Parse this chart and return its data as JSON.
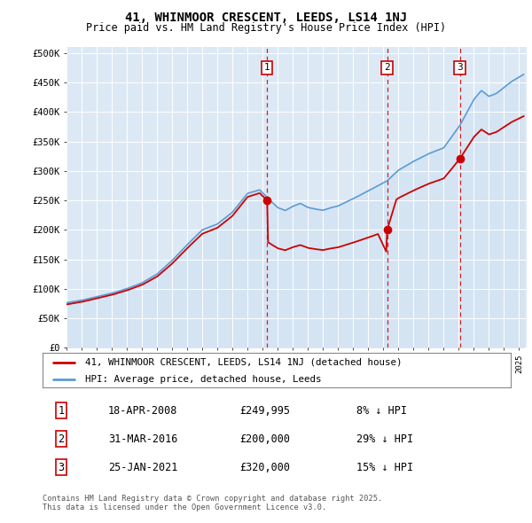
{
  "title": "41, WHINMOOR CRESCENT, LEEDS, LS14 1NJ",
  "subtitle": "Price paid vs. HM Land Registry's House Price Index (HPI)",
  "ylabel_ticks": [
    "£0",
    "£50K",
    "£100K",
    "£150K",
    "£200K",
    "£250K",
    "£300K",
    "£350K",
    "£400K",
    "£450K",
    "£500K"
  ],
  "ytick_values": [
    0,
    50000,
    100000,
    150000,
    200000,
    250000,
    300000,
    350000,
    400000,
    450000,
    500000
  ],
  "hpi_color": "#5b9bd5",
  "hpi_fill": "#dce9f5",
  "price_color": "#cc0000",
  "plot_bg": "#dce9f5",
  "legend_label_price": "41, WHINMOOR CRESCENT, LEEDS, LS14 1NJ (detached house)",
  "legend_label_hpi": "HPI: Average price, detached house, Leeds",
  "transactions": [
    {
      "id": 1,
      "date": "18-APR-2008",
      "price": 249995,
      "note": "8% ↓ HPI",
      "year": 2008.3
    },
    {
      "id": 2,
      "date": "31-MAR-2016",
      "price": 200000,
      "note": "29% ↓ HPI",
      "year": 2016.25
    },
    {
      "id": 3,
      "date": "25-JAN-2021",
      "price": 320000,
      "note": "15% ↓ HPI",
      "year": 2021.07
    }
  ],
  "footer": "Contains HM Land Registry data © Crown copyright and database right 2025.\nThis data is licensed under the Open Government Licence v3.0.",
  "xmin": 1995,
  "xmax": 2025.5
}
